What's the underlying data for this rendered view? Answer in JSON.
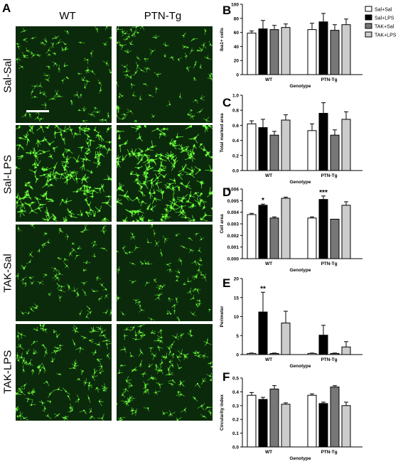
{
  "figure": {
    "panel_a_letter": "A",
    "columns": [
      "WT",
      "PTN-Tg"
    ],
    "rows": [
      "Sal-Sal",
      "Sal-LPS",
      "TAK-Sal",
      "TAK-LPS"
    ],
    "tile_density": [
      0.35,
      1.0,
      0.3,
      0.55
    ],
    "micrograph_colors": {
      "background": "#0b2a0b",
      "cell": "#6bff3a"
    }
  },
  "legend": {
    "entries": [
      "Sal+Sal",
      "Sal+LPS",
      "TAK+Sal",
      "TAK+LPS"
    ],
    "colors": [
      "#ffffff",
      "#000000",
      "#777777",
      "#cccccc"
    ]
  },
  "chart_data": [
    {
      "type": "bar",
      "panel": "B",
      "categories": [
        "WT",
        "PTN-Tg"
      ],
      "xlabel": "Genotype",
      "ylabel": "Iba1+ cells",
      "ylim": [
        0,
        100
      ],
      "yticks": [
        0,
        20,
        40,
        60,
        80,
        100
      ],
      "ytick_labels": [
        "0",
        "20",
        "40",
        "60",
        "80",
        "100"
      ],
      "series": [
        {
          "name": "Sal+Sal",
          "values": [
            59,
            64
          ],
          "errors": [
            3,
            9
          ]
        },
        {
          "name": "Sal+LPS",
          "values": [
            65,
            75
          ],
          "errors": [
            12,
            12
          ]
        },
        {
          "name": "TAK+Sal",
          "values": [
            64,
            63
          ],
          "errors": [
            6,
            8
          ]
        },
        {
          "name": "TAK+LPS",
          "values": [
            67,
            71
          ],
          "errors": [
            5,
            8
          ]
        }
      ],
      "annotations": []
    },
    {
      "type": "bar",
      "panel": "C",
      "categories": [
        "WT",
        "PTN-Tg"
      ],
      "xlabel": "Genotype",
      "ylabel": "Total marked area",
      "ylim": [
        0,
        1.0
      ],
      "yticks": [
        0,
        0.2,
        0.4,
        0.6,
        0.8,
        1.0
      ],
      "ytick_labels": [
        "0.0",
        "0.2",
        "0.4",
        "0.6",
        "0.8",
        "1.0"
      ],
      "series": [
        {
          "name": "Sal+Sal",
          "values": [
            0.62,
            0.53
          ],
          "errors": [
            0.04,
            0.09
          ]
        },
        {
          "name": "Sal+LPS",
          "values": [
            0.57,
            0.76
          ],
          "errors": [
            0.11,
            0.14
          ]
        },
        {
          "name": "TAK+Sal",
          "values": [
            0.47,
            0.47
          ],
          "errors": [
            0.05,
            0.07
          ]
        },
        {
          "name": "TAK+LPS",
          "values": [
            0.67,
            0.68
          ],
          "errors": [
            0.07,
            0.1
          ]
        }
      ],
      "annotations": []
    },
    {
      "type": "bar",
      "panel": "D",
      "categories": [
        "WT",
        "PTN-Tg"
      ],
      "xlabel": "Genotype",
      "ylabel": "Cell area",
      "ylim": [
        0,
        0.006
      ],
      "yticks": [
        0,
        0.001,
        0.002,
        0.003,
        0.004,
        0.005,
        0.006
      ],
      "ytick_labels": [
        "0.000",
        "0.001",
        "0.002",
        "0.003",
        "0.004",
        "0.005",
        "0.006"
      ],
      "series": [
        {
          "name": "Sal+Sal",
          "values": [
            0.0038,
            0.0035
          ],
          "errors": [
            0.0001,
            0.0001
          ]
        },
        {
          "name": "Sal+LPS",
          "values": [
            0.0046,
            0.0051
          ],
          "errors": [
            0.0001,
            0.0003
          ]
        },
        {
          "name": "TAK+Sal",
          "values": [
            0.0035,
            0.0034
          ],
          "errors": [
            0.0001,
            0.0
          ]
        },
        {
          "name": "TAK+LPS",
          "values": [
            0.0052,
            0.0046
          ],
          "errors": [
            0.0001,
            0.0003
          ]
        }
      ],
      "annotations": [
        {
          "text": "*",
          "category": 0,
          "series": 1
        },
        {
          "text": "***",
          "category": 1,
          "series": 1
        }
      ]
    },
    {
      "type": "bar",
      "panel": "E",
      "categories": [
        "WT",
        "PTN-Tg"
      ],
      "xlabel": "Genotype",
      "ylabel": "Perimeter",
      "ylim": [
        0,
        20
      ],
      "yticks": [
        0,
        5,
        10,
        15,
        20
      ],
      "ytick_labels": [
        "0",
        "5",
        "10",
        "15",
        "20"
      ],
      "series": [
        {
          "name": "Sal+Sal",
          "values": [
            0.3,
            0.3
          ],
          "errors": [
            0.1,
            0.1
          ]
        },
        {
          "name": "Sal+LPS",
          "values": [
            11.2,
            5.1
          ],
          "errors": [
            5.2,
            2.6
          ]
        },
        {
          "name": "TAK+Sal",
          "values": [
            0.3,
            0.3
          ],
          "errors": [
            0.1,
            0.1
          ]
        },
        {
          "name": "TAK+LPS",
          "values": [
            8.3,
            2.0
          ],
          "errors": [
            3.1,
            1.4
          ]
        }
      ],
      "annotations": [
        {
          "text": "**",
          "category": 0,
          "series": 1
        }
      ]
    },
    {
      "type": "bar",
      "panel": "F",
      "categories": [
        "WT",
        "PTN-Tg"
      ],
      "xlabel": "Genotype",
      "ylabel": "Circularity index",
      "ylim": [
        0,
        0.5
      ],
      "yticks": [
        0,
        0.1,
        0.2,
        0.3,
        0.4,
        0.5
      ],
      "ytick_labels": [
        "0.0",
        "0.1",
        "0.2",
        "0.3",
        "0.4",
        "0.5"
      ],
      "series": [
        {
          "name": "Sal+Sal",
          "values": [
            0.375,
            0.375
          ],
          "errors": [
            0.02,
            0.01
          ]
        },
        {
          "name": "Sal+LPS",
          "values": [
            0.345,
            0.315
          ],
          "errors": [
            0.015,
            0.01
          ]
        },
        {
          "name": "TAK+Sal",
          "values": [
            0.42,
            0.435
          ],
          "errors": [
            0.025,
            0.01
          ]
        },
        {
          "name": "TAK+LPS",
          "values": [
            0.31,
            0.3
          ],
          "errors": [
            0.01,
            0.025
          ]
        }
      ],
      "annotations": []
    }
  ]
}
